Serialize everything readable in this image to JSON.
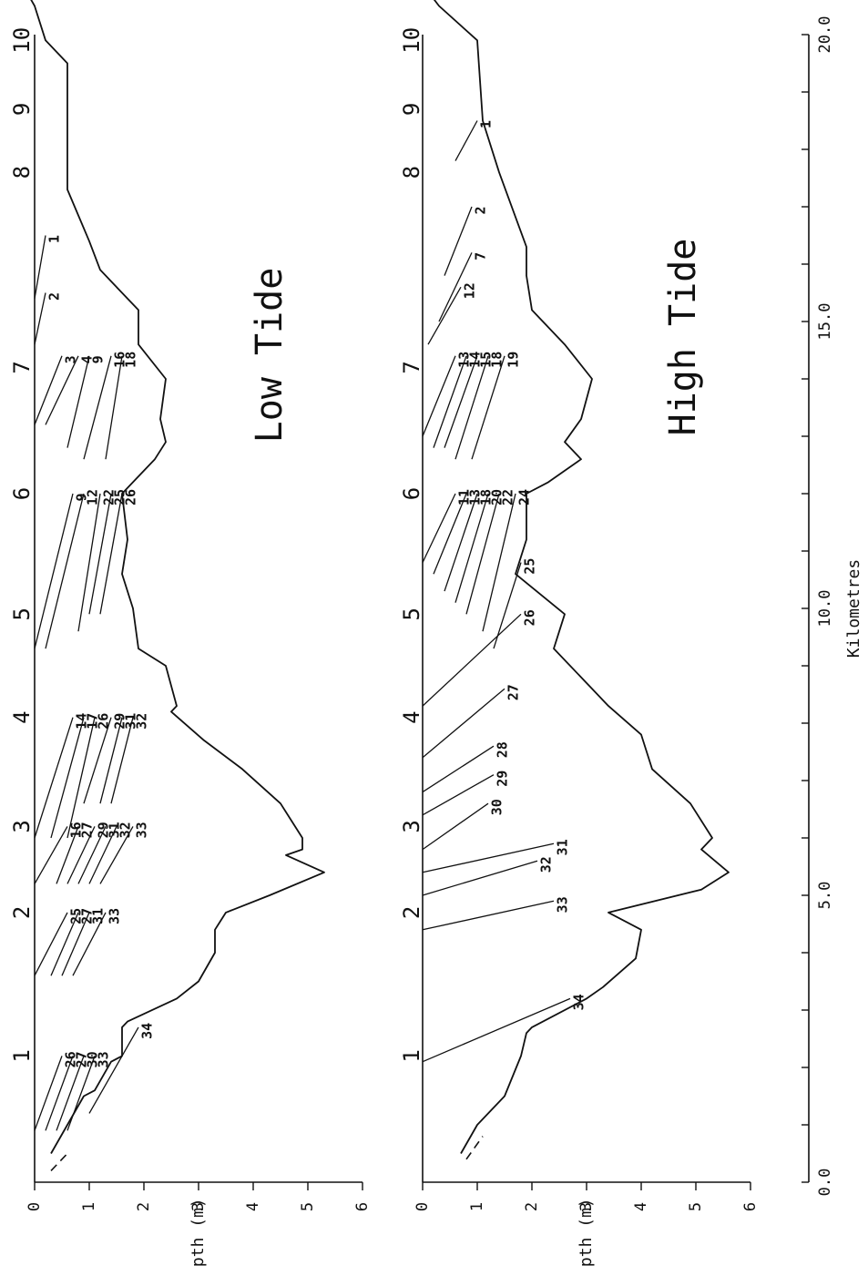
{
  "chart_data": {
    "type": "line",
    "x_axis": {
      "label": "Kilometres",
      "range": [
        0,
        20
      ],
      "ticks": [
        0,
        1,
        2,
        3,
        4,
        5,
        6,
        7,
        8,
        9,
        10,
        11,
        12,
        13,
        14,
        15,
        16,
        17,
        18,
        19,
        20
      ],
      "tick_labels": [
        {
          "value": 0,
          "label": "0.0"
        },
        {
          "value": 5,
          "label": "5.0"
        },
        {
          "value": 10,
          "label": "10.0"
        },
        {
          "value": 15,
          "label": "15.0"
        },
        {
          "value": 20,
          "label": "20.0"
        }
      ]
    },
    "stations": [
      {
        "label": "1",
        "km": 2.2
      },
      {
        "label": "2",
        "km": 4.7
      },
      {
        "label": "3",
        "km": 6.2
      },
      {
        "label": "4",
        "km": 8.1
      },
      {
        "label": "5",
        "km": 9.9
      },
      {
        "label": "6",
        "km": 12.0
      },
      {
        "label": "7",
        "km": 14.2
      },
      {
        "label": "8",
        "km": 17.6
      },
      {
        "label": "9",
        "km": 18.7
      },
      {
        "label": "10",
        "km": 19.9
      }
    ],
    "panels": [
      {
        "title": "Low Tide",
        "y_axis": {
          "label": "Depth (m)",
          "range": [
            0,
            6
          ],
          "ticks": [
            0,
            1,
            2,
            3,
            4,
            5,
            6
          ]
        },
        "bottom_profile": {
          "km": [
            0.5,
            1.0,
            1.5,
            1.6,
            2.1,
            2.2,
            2.7,
            2.8,
            3.2,
            3.5,
            4.0,
            4.4,
            4.7,
            5.0,
            5.4,
            5.7,
            5.8,
            6.0,
            6.6,
            7.2,
            7.7,
            8.2,
            8.3,
            9.0,
            9.3,
            10.0,
            10.6,
            11.2,
            12.0,
            12.2,
            12.6,
            12.9,
            13.3,
            14.0,
            14.6,
            15.2,
            15.9,
            16.4,
            17.3,
            18.5,
            19.5,
            19.9,
            20.5,
            21.0
          ],
          "depth": [
            0.3,
            0.6,
            0.9,
            1.1,
            1.4,
            1.6,
            1.6,
            1.7,
            2.6,
            3.0,
            3.3,
            3.3,
            3.5,
            4.3,
            5.3,
            4.6,
            4.9,
            4.9,
            4.5,
            3.8,
            3.1,
            2.5,
            2.6,
            2.4,
            1.9,
            1.8,
            1.6,
            1.7,
            1.6,
            1.8,
            2.2,
            2.4,
            2.3,
            2.4,
            1.9,
            1.9,
            1.2,
            1.0,
            0.6,
            0.6,
            0.6,
            0.2,
            0.0,
            -0.3
          ]
        },
        "dashed_surface": {
          "km": [
            0.2,
            0.5
          ],
          "depth": [
            0.3,
            0.6
          ]
        },
        "isolines": [
          {
            "label": "1",
            "points": [
              [
                15.4,
                0.0
              ],
              [
                16.5,
                0.2
              ]
            ]
          },
          {
            "label": "2",
            "points": [
              [
                14.6,
                0.0
              ],
              [
                15.5,
                0.2
              ]
            ]
          },
          {
            "label": "3",
            "points": [
              [
                13.2,
                0.0
              ],
              [
                14.4,
                0.5
              ]
            ]
          },
          {
            "label": "4",
            "points": [
              [
                13.2,
                0.2
              ],
              [
                14.4,
                0.8
              ]
            ]
          },
          {
            "label": "9",
            "points": [
              [
                12.8,
                0.6
              ],
              [
                14.4,
                1.0
              ]
            ]
          },
          {
            "label": "9",
            "points": [
              [
                9.3,
                0.0
              ],
              [
                12.0,
                0.7
              ]
            ]
          },
          {
            "label": "12",
            "points": [
              [
                9.3,
                0.2
              ],
              [
                12.0,
                0.9
              ]
            ]
          },
          {
            "label": "14",
            "points": [
              [
                6.0,
                0.0
              ],
              [
                8.1,
                0.7
              ]
            ]
          },
          {
            "label": "16",
            "points": [
              [
                5.2,
                0.0
              ],
              [
                6.2,
                0.6
              ]
            ]
          },
          {
            "label": "16",
            "points": [
              [
                12.6,
                0.9
              ],
              [
                14.4,
                1.4
              ]
            ]
          },
          {
            "label": "17",
            "points": [
              [
                6.0,
                0.3
              ],
              [
                8.1,
                0.9
              ]
            ]
          },
          {
            "label": "18",
            "points": [
              [
                12.6,
                1.3
              ],
              [
                14.4,
                1.6
              ]
            ]
          },
          {
            "label": "22",
            "points": [
              [
                9.6,
                0.8
              ],
              [
                12.0,
                1.2
              ]
            ]
          },
          {
            "label": "25",
            "points": [
              [
                3.6,
                0.0
              ],
              [
                4.7,
                0.6
              ]
            ]
          },
          {
            "label": "25",
            "points": [
              [
                9.9,
                1.0
              ],
              [
                12.0,
                1.4
              ]
            ]
          },
          {
            "label": "26",
            "points": [
              [
                0.9,
                0.0
              ],
              [
                2.2,
                0.5
              ]
            ]
          },
          {
            "label": "26",
            "points": [
              [
                6.0,
                0.6
              ],
              [
                8.1,
                1.1
              ]
            ]
          },
          {
            "label": "26",
            "points": [
              [
                9.9,
                1.2
              ],
              [
                12.0,
                1.6
              ]
            ]
          },
          {
            "label": "27",
            "points": [
              [
                0.9,
                0.2
              ],
              [
                2.2,
                0.7
              ]
            ]
          },
          {
            "label": "27",
            "points": [
              [
                3.6,
                0.3
              ],
              [
                4.7,
                0.8
              ]
            ]
          },
          {
            "label": "27",
            "points": [
              [
                5.2,
                0.4
              ],
              [
                6.2,
                0.8
              ]
            ]
          },
          {
            "label": "29",
            "points": [
              [
                5.2,
                0.6
              ],
              [
                6.2,
                1.1
              ]
            ]
          },
          {
            "label": "29",
            "points": [
              [
                6.6,
                0.9
              ],
              [
                8.1,
                1.4
              ]
            ]
          },
          {
            "label": "30",
            "points": [
              [
                0.9,
                0.4
              ],
              [
                2.2,
                0.9
              ]
            ]
          },
          {
            "label": "31",
            "points": [
              [
                3.6,
                0.5
              ],
              [
                4.7,
                1.0
              ]
            ]
          },
          {
            "label": "31",
            "points": [
              [
                5.2,
                0.8
              ],
              [
                6.2,
                1.3
              ]
            ]
          },
          {
            "label": "31",
            "points": [
              [
                6.6,
                1.2
              ],
              [
                8.1,
                1.6
              ]
            ]
          },
          {
            "label": "32",
            "points": [
              [
                5.2,
                1.0
              ],
              [
                6.2,
                1.5
              ]
            ]
          },
          {
            "label": "32",
            "points": [
              [
                6.6,
                1.4
              ],
              [
                8.1,
                1.8
              ]
            ]
          },
          {
            "label": "33",
            "points": [
              [
                0.9,
                0.6
              ],
              [
                2.2,
                1.1
              ]
            ]
          },
          {
            "label": "33",
            "points": [
              [
                3.6,
                0.7
              ],
              [
                4.7,
                1.3
              ]
            ]
          },
          {
            "label": "33",
            "points": [
              [
                5.2,
                1.2
              ],
              [
                6.2,
                1.8
              ]
            ]
          },
          {
            "label": "34",
            "points": [
              [
                1.2,
                1.0
              ],
              [
                2.7,
                1.9
              ]
            ]
          }
        ]
      },
      {
        "title": "High Tide",
        "y_axis": {
          "label": "Depth (m)",
          "range": [
            0,
            6
          ],
          "ticks": [
            0,
            1,
            2,
            3,
            4,
            5,
            6
          ]
        },
        "bottom_profile": {
          "km": [
            0.5,
            1.0,
            1.5,
            2.2,
            2.6,
            2.7,
            3.2,
            3.4,
            3.9,
            4.4,
            4.7,
            5.1,
            5.4,
            5.8,
            6.0,
            6.6,
            7.2,
            7.8,
            8.3,
            9.3,
            9.9,
            10.6,
            11.2,
            12.0,
            12.2,
            12.6,
            12.9,
            13.3,
            14.0,
            14.6,
            15.2,
            15.8,
            16.3,
            17.6,
            18.5,
            19.9,
            20.5,
            21.0
          ],
          "depth": [
            0.7,
            1.0,
            1.5,
            1.8,
            1.9,
            2.0,
            3.0,
            3.3,
            3.9,
            4.0,
            3.4,
            5.1,
            5.6,
            5.1,
            5.3,
            4.9,
            4.2,
            4.0,
            3.4,
            2.4,
            2.6,
            1.7,
            1.9,
            1.9,
            2.3,
            2.9,
            2.6,
            2.9,
            3.1,
            2.6,
            2.0,
            1.9,
            1.9,
            1.4,
            1.1,
            1.0,
            0.3,
            -0.1
          ]
        },
        "dashed_surface": {
          "km": [
            0.4,
            0.8
          ],
          "depth": [
            0.8,
            1.1
          ]
        },
        "isolines": [
          {
            "label": "1",
            "points": [
              [
                17.8,
                0.6
              ],
              [
                18.5,
                1.0
              ]
            ]
          },
          {
            "label": "2",
            "points": [
              [
                15.8,
                0.4
              ],
              [
                17.0,
                0.9
              ]
            ]
          },
          {
            "label": "7",
            "points": [
              [
                15.0,
                0.3
              ],
              [
                16.2,
                0.9
              ]
            ]
          },
          {
            "label": "11",
            "points": [
              [
                10.8,
                0.0
              ],
              [
                12.0,
                0.6
              ]
            ]
          },
          {
            "label": "12",
            "points": [
              [
                14.6,
                0.1
              ],
              [
                15.6,
                0.7
              ]
            ]
          },
          {
            "label": "13",
            "points": [
              [
                10.6,
                0.2
              ],
              [
                12.0,
                0.8
              ]
            ]
          },
          {
            "label": "13",
            "points": [
              [
                13.0,
                0.0
              ],
              [
                14.4,
                0.6
              ]
            ]
          },
          {
            "label": "14",
            "points": [
              [
                12.8,
                0.2
              ],
              [
                14.4,
                0.8
              ]
            ]
          },
          {
            "label": "15",
            "points": [
              [
                12.8,
                0.4
              ],
              [
                14.4,
                1.0
              ]
            ]
          },
          {
            "label": "18",
            "points": [
              [
                10.3,
                0.4
              ],
              [
                12.0,
                1.0
              ]
            ]
          },
          {
            "label": "18",
            "points": [
              [
                12.6,
                0.6
              ],
              [
                14.4,
                1.2
              ]
            ]
          },
          {
            "label": "19",
            "points": [
              [
                12.6,
                0.9
              ],
              [
                14.4,
                1.5
              ]
            ]
          },
          {
            "label": "20",
            "points": [
              [
                10.1,
                0.6
              ],
              [
                12.0,
                1.2
              ]
            ]
          },
          {
            "label": "22",
            "points": [
              [
                9.9,
                0.8
              ],
              [
                12.0,
                1.4
              ]
            ]
          },
          {
            "label": "24",
            "points": [
              [
                9.6,
                1.1
              ],
              [
                12.0,
                1.7
              ]
            ]
          },
          {
            "label": "25",
            "points": [
              [
                9.3,
                1.3
              ],
              [
                10.8,
                1.8
              ]
            ]
          },
          {
            "label": "26",
            "points": [
              [
                8.3,
                0.0
              ],
              [
                9.9,
                1.8
              ]
            ]
          },
          {
            "label": "27",
            "points": [
              [
                7.4,
                0.0
              ],
              [
                8.6,
                1.5
              ]
            ]
          },
          {
            "label": "28",
            "points": [
              [
                6.8,
                0.0
              ],
              [
                7.6,
                1.3
              ]
            ]
          },
          {
            "label": "29",
            "points": [
              [
                6.4,
                0.0
              ],
              [
                7.1,
                1.3
              ]
            ]
          },
          {
            "label": "30",
            "points": [
              [
                5.8,
                0.0
              ],
              [
                6.6,
                1.2
              ]
            ]
          },
          {
            "label": "31",
            "points": [
              [
                5.4,
                0.0
              ],
              [
                5.9,
                2.4
              ]
            ]
          },
          {
            "label": "32",
            "points": [
              [
                5.0,
                0.0
              ],
              [
                5.6,
                2.1
              ]
            ]
          },
          {
            "label": "33",
            "points": [
              [
                4.4,
                0.0
              ],
              [
                4.9,
                2.4
              ]
            ]
          },
          {
            "label": "34",
            "points": [
              [
                2.1,
                0.0
              ],
              [
                3.2,
                2.7
              ]
            ]
          }
        ]
      }
    ]
  }
}
